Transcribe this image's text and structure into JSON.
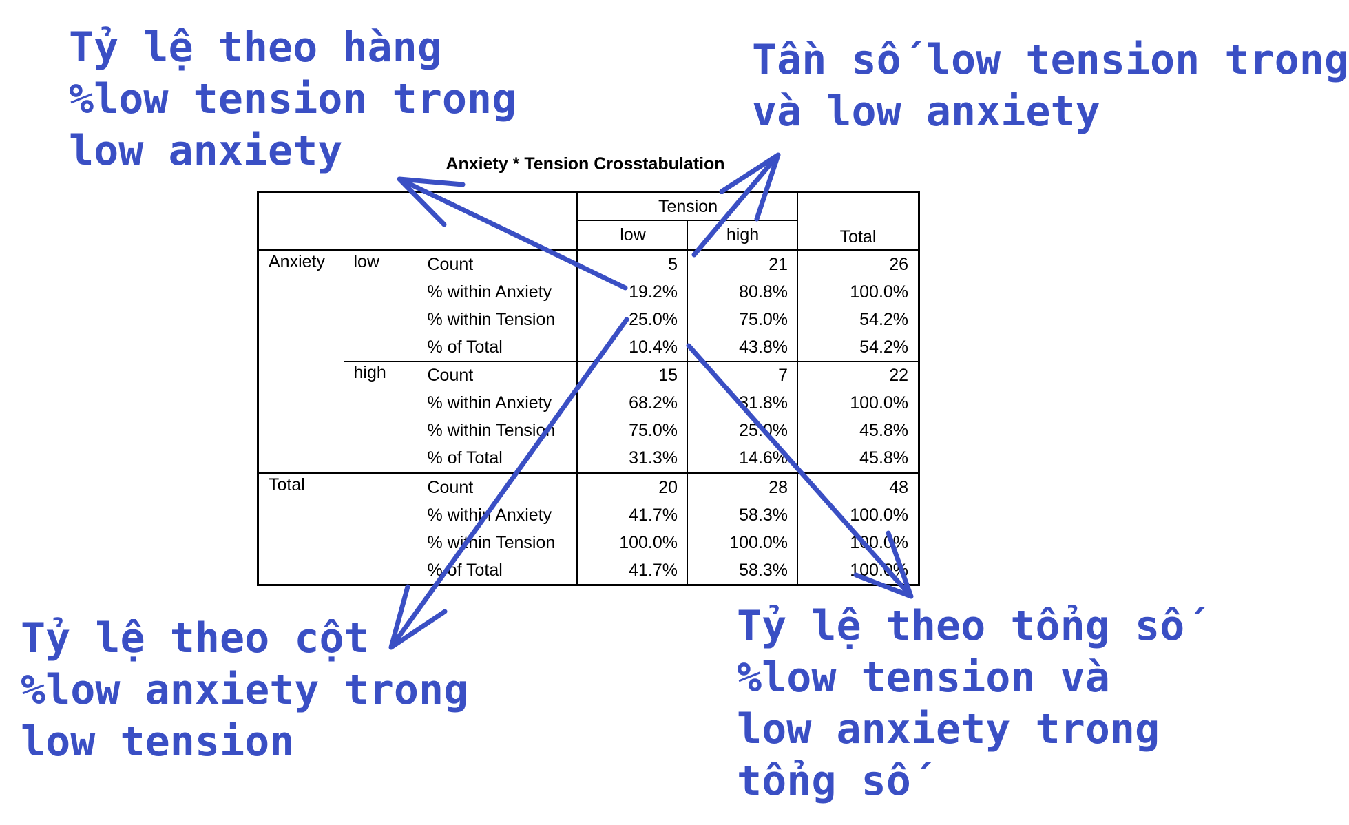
{
  "annotations": {
    "top_left": "Tỷ lệ theo hàng\n%low tension trong\nlow anxiety",
    "top_right": "Tần số low tension trong\nvà low anxiety",
    "bottom_left": "Tỷ lệ theo cột\n%low anxiety trong\nlow tension",
    "bottom_right": "Tỷ lệ theo tổng số\n%low tension và\nlow anxiety trong\ntổng số"
  },
  "table": {
    "title": "Anxiety * Tension Crosstabulation",
    "col_group": "Tension",
    "col_low": "low",
    "col_high": "high",
    "col_total": "Total",
    "row_var": "Anxiety",
    "groups": [
      {
        "label": "low",
        "rows": [
          {
            "stat": "Count",
            "low": "5",
            "high": "21",
            "total": "26"
          },
          {
            "stat": "% within Anxiety",
            "low": "19.2%",
            "high": "80.8%",
            "total": "100.0%"
          },
          {
            "stat": "% within Tension",
            "low": "25.0%",
            "high": "75.0%",
            "total": "54.2%"
          },
          {
            "stat": "% of Total",
            "low": "10.4%",
            "high": "43.8%",
            "total": "54.2%"
          }
        ]
      },
      {
        "label": "high",
        "rows": [
          {
            "stat": "Count",
            "low": "15",
            "high": "7",
            "total": "22"
          },
          {
            "stat": "% within Anxiety",
            "low": "68.2%",
            "high": "31.8%",
            "total": "100.0%"
          },
          {
            "stat": "% within Tension",
            "low": "75.0%",
            "high": "25.0%",
            "total": "45.8%"
          },
          {
            "stat": "% of Total",
            "low": "31.3%",
            "high": "14.6%",
            "total": "45.8%"
          }
        ]
      }
    ],
    "total_label": "Total",
    "total_rows": [
      {
        "stat": "Count",
        "low": "20",
        "high": "28",
        "total": "48"
      },
      {
        "stat": "% within Anxiety",
        "low": "41.7%",
        "high": "58.3%",
        "total": "100.0%"
      },
      {
        "stat": "% within Tension",
        "low": "100.0%",
        "high": "100.0%",
        "total": "100.0%"
      },
      {
        "stat": "% of Total",
        "low": "41.7%",
        "high": "58.3%",
        "total": "100.0%"
      }
    ]
  },
  "colors": {
    "annotation": "#3a4fc4",
    "table_text": "#000000"
  }
}
